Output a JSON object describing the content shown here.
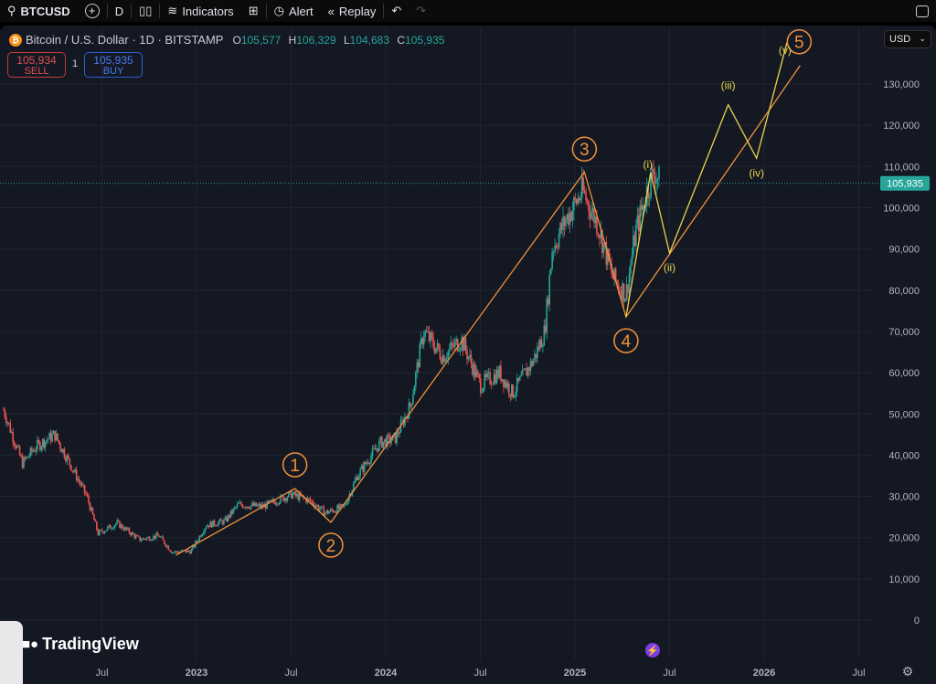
{
  "toolbar": {
    "symbol": "BTCUSD",
    "interval": "D",
    "indicators": "Indicators",
    "alert": "Alert",
    "replay": "Replay"
  },
  "legend": {
    "title": "Bitcoin / U.S. Dollar · 1D · BITSTAMP",
    "o_label": "O",
    "o": "105,577",
    "h_label": "H",
    "h": "106,329",
    "l_label": "L",
    "l": "104,683",
    "c_label": "C",
    "c": "105,935"
  },
  "trade": {
    "sell_price": "105,934",
    "sell_label": "SELL",
    "buy_price": "105,935",
    "buy_label": "BUY",
    "qty": "1"
  },
  "currency": "USD",
  "brand": "TradingView",
  "colors": {
    "up": "#26a69a",
    "down": "#ef5350",
    "wave": "#f0923a",
    "subwave": "#e8d44d"
  },
  "chart_data": {
    "type": "candlestick",
    "y_ticks": [
      0,
      10000,
      20000,
      30000,
      40000,
      50000,
      60000,
      70000,
      80000,
      90000,
      100000,
      110000,
      120000,
      130000
    ],
    "y_tick_labels": [
      "0",
      "10,000",
      "20,000",
      "30,000",
      "40,000",
      "50,000",
      "60,000",
      "70,000",
      "80,000",
      "90,000",
      "100,000",
      "110,000",
      "120,000",
      "130,000"
    ],
    "x_ticks": [
      2022.5,
      2023,
      2023.5,
      2024,
      2024.5,
      2025,
      2025.5,
      2026,
      2026.5
    ],
    "x_tick_labels": [
      "Jul",
      "2023",
      "Jul",
      "2024",
      "Jul",
      "2025",
      "Jul",
      "2026",
      "Jul"
    ],
    "last_price": 105935,
    "last_price_label": "105,935",
    "path": [
      [
        2021.98,
        51000
      ],
      [
        2022.08,
        38000
      ],
      [
        2022.15,
        42000
      ],
      [
        2022.25,
        45000
      ],
      [
        2022.33,
        38000
      ],
      [
        2022.42,
        30000
      ],
      [
        2022.48,
        21000
      ],
      [
        2022.58,
        23500
      ],
      [
        2022.7,
        19500
      ],
      [
        2022.8,
        20500
      ],
      [
        2022.87,
        16500
      ],
      [
        2022.97,
        16700
      ],
      [
        2023.05,
        23000
      ],
      [
        2023.15,
        24000
      ],
      [
        2023.22,
        28000
      ],
      [
        2023.35,
        27500
      ],
      [
        2023.5,
        30500
      ],
      [
        2023.6,
        29000
      ],
      [
        2023.68,
        26000
      ],
      [
        2023.78,
        27500
      ],
      [
        2023.85,
        35000
      ],
      [
        2023.97,
        43000
      ],
      [
        2024.05,
        44000
      ],
      [
        2024.13,
        52000
      ],
      [
        2024.2,
        70000
      ],
      [
        2024.3,
        64000
      ],
      [
        2024.4,
        68000
      ],
      [
        2024.5,
        57000
      ],
      [
        2024.6,
        60000
      ],
      [
        2024.67,
        55000
      ],
      [
        2024.78,
        63000
      ],
      [
        2024.84,
        70000
      ],
      [
        2024.88,
        90000
      ],
      [
        2024.95,
        97000
      ],
      [
        2025.04,
        104000
      ],
      [
        2025.12,
        96000
      ],
      [
        2025.2,
        83000
      ],
      [
        2025.27,
        79000
      ],
      [
        2025.32,
        94000
      ],
      [
        2025.38,
        104000
      ],
      [
        2025.42,
        109000
      ],
      [
        2025.45,
        105935
      ]
    ],
    "waves": [
      {
        "name": "primary",
        "points": [
          [
            2022.89,
            15700
          ],
          [
            2023.52,
            31900
          ],
          [
            2023.71,
            23700
          ],
          [
            2025.05,
            108700
          ],
          [
            2025.27,
            73500
          ],
          [
            2026.19,
            134500
          ]
        ],
        "labels": [
          "1",
          "2",
          "3",
          "4",
          "5"
        ]
      },
      {
        "name": "subwave",
        "points": [
          [
            2025.27,
            73500
          ],
          [
            2025.4,
            108500
          ],
          [
            2025.5,
            89000
          ],
          [
            2025.81,
            125000
          ],
          [
            2025.96,
            112000
          ],
          [
            2026.12,
            140000
          ]
        ],
        "labels": [
          "(i)",
          "(ii)",
          "(iii)",
          "(iv)",
          "(v)"
        ]
      }
    ]
  }
}
